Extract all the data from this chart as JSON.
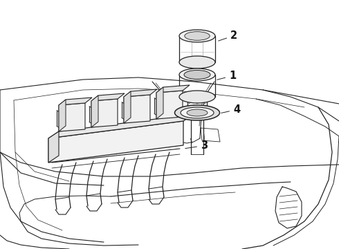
{
  "bg_color": "#ffffff",
  "line_color": "#222222",
  "label_color": "#111111",
  "fig_width": 4.9,
  "fig_height": 3.6,
  "dpi": 100,
  "label_fontsize": 10.5,
  "lw_main": 0.9,
  "lw_thin": 0.5
}
